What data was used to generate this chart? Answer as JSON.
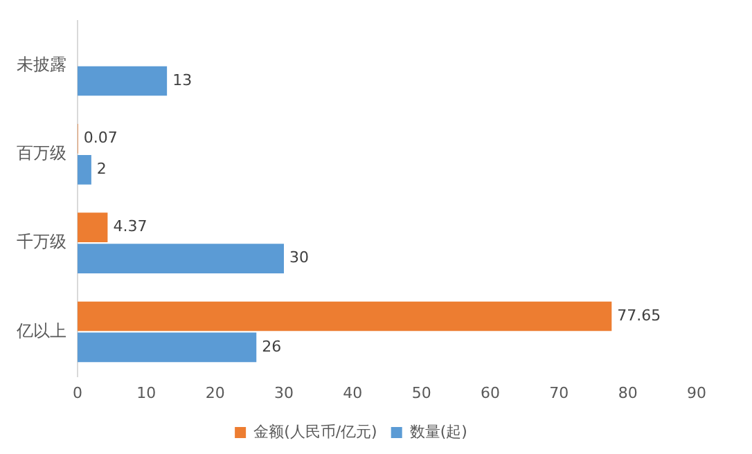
{
  "chart_data": {
    "type": "bar",
    "orientation": "horizontal",
    "categories": [
      "未披露",
      "百万级",
      "千万级",
      "亿以上"
    ],
    "series": [
      {
        "name": "金额(人民币/亿元)",
        "color": "#ed7d31",
        "values": [
          null,
          0.07,
          4.37,
          77.65
        ]
      },
      {
        "name": "数量(起)",
        "color": "#5b9bd5",
        "values": [
          13,
          2,
          30,
          26
        ]
      }
    ],
    "xlim": [
      0,
      90
    ],
    "xticks": [
      0,
      10,
      20,
      30,
      40,
      50,
      60,
      70,
      80,
      90
    ],
    "grid": false,
    "legend": "bottom",
    "data_labels": true
  }
}
